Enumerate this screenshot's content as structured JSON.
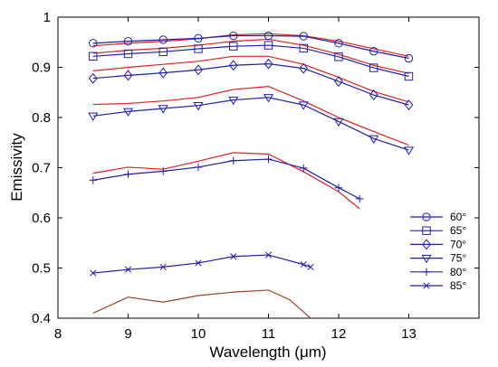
{
  "chart_data": {
    "type": "line",
    "title": "",
    "xlabel": "Wavelength (μm)",
    "ylabel": "Emissivity",
    "xlim": [
      8,
      14
    ],
    "ylim": [
      0.4,
      1.0
    ],
    "xticks": [
      "8",
      "9",
      "10",
      "11",
      "12",
      "13"
    ],
    "yticks": [
      "0.4",
      "0.5",
      "0.6",
      "0.7",
      "0.8",
      "0.9",
      "1"
    ],
    "grid": false,
    "legend_position": "right",
    "colors": {
      "measured": "#1f1fb0",
      "model": "#e02020",
      "model_85": "#a0402a"
    },
    "series": [
      {
        "name": "60°",
        "marker": "circle",
        "x": [
          8.5,
          9,
          9.5,
          10,
          10.5,
          11,
          11.5,
          12,
          12.5,
          13
        ],
        "y": [
          0.948,
          0.952,
          0.955,
          0.958,
          0.963,
          0.963,
          0.962,
          0.948,
          0.932,
          0.918
        ]
      },
      {
        "name": "65°",
        "marker": "square",
        "x": [
          8.5,
          9,
          9.5,
          10,
          10.5,
          11,
          11.5,
          12,
          12.5,
          13
        ],
        "y": [
          0.922,
          0.927,
          0.931,
          0.937,
          0.942,
          0.944,
          0.938,
          0.921,
          0.899,
          0.882
        ]
      },
      {
        "name": "70°",
        "marker": "diamond",
        "x": [
          8.5,
          9,
          9.5,
          10,
          10.5,
          11,
          11.5,
          12,
          12.5,
          13
        ],
        "y": [
          0.878,
          0.884,
          0.889,
          0.895,
          0.904,
          0.907,
          0.898,
          0.872,
          0.845,
          0.825
        ]
      },
      {
        "name": "75°",
        "marker": "triangle-down",
        "x": [
          8.5,
          9,
          9.5,
          10,
          10.5,
          11,
          11.5,
          12,
          12.5,
          13
        ],
        "y": [
          0.803,
          0.812,
          0.818,
          0.824,
          0.835,
          0.84,
          0.825,
          0.792,
          0.758,
          0.735
        ]
      },
      {
        "name": "80°",
        "marker": "plus",
        "x": [
          8.5,
          9,
          9.5,
          10,
          10.5,
          11,
          11.5,
          12,
          12.3
        ],
        "y": [
          0.675,
          0.687,
          0.693,
          0.701,
          0.714,
          0.717,
          0.699,
          0.66,
          0.638
        ]
      },
      {
        "name": "85°",
        "marker": "x",
        "x": [
          8.5,
          9,
          9.5,
          10,
          10.5,
          11,
          11.5,
          11.6
        ],
        "y": [
          0.49,
          0.497,
          0.502,
          0.51,
          0.523,
          0.526,
          0.507,
          0.502
        ]
      }
    ],
    "model_curves": [
      {
        "x": [
          8.5,
          9,
          9.5,
          10,
          10.5,
          11,
          11.5,
          12,
          12.5,
          13
        ],
        "y": [
          0.943,
          0.948,
          0.952,
          0.957,
          0.965,
          0.967,
          0.963,
          0.952,
          0.937,
          0.922
        ]
      },
      {
        "x": [
          8.5,
          9,
          9.5,
          10,
          10.5,
          11,
          11.5,
          12,
          12.5,
          13
        ],
        "y": [
          0.928,
          0.934,
          0.938,
          0.944,
          0.952,
          0.956,
          0.944,
          0.926,
          0.904,
          0.888
        ]
      },
      {
        "x": [
          8.5,
          9,
          9.5,
          10,
          10.5,
          11,
          11.5,
          12,
          12.5,
          13
        ],
        "y": [
          0.893,
          0.9,
          0.906,
          0.912,
          0.922,
          0.922,
          0.906,
          0.88,
          0.852,
          0.831
        ]
      },
      {
        "x": [
          8.5,
          9,
          9.5,
          10,
          10.5,
          11,
          11.5,
          12,
          12.5,
          13
        ],
        "y": [
          0.826,
          0.828,
          0.833,
          0.84,
          0.856,
          0.862,
          0.833,
          0.8,
          0.772,
          0.745
        ]
      },
      {
        "x": [
          8.5,
          9,
          9.5,
          10,
          10.5,
          11,
          11.5,
          12,
          12.3
        ],
        "y": [
          0.689,
          0.701,
          0.697,
          0.713,
          0.73,
          0.727,
          0.692,
          0.652,
          0.618
        ]
      },
      {
        "x": [
          8.5,
          9,
          9.5,
          10,
          10.5,
          11,
          11.3,
          11.6
        ],
        "y": [
          0.41,
          0.442,
          0.432,
          0.445,
          0.452,
          0.456,
          0.437,
          0.4
        ]
      }
    ]
  }
}
